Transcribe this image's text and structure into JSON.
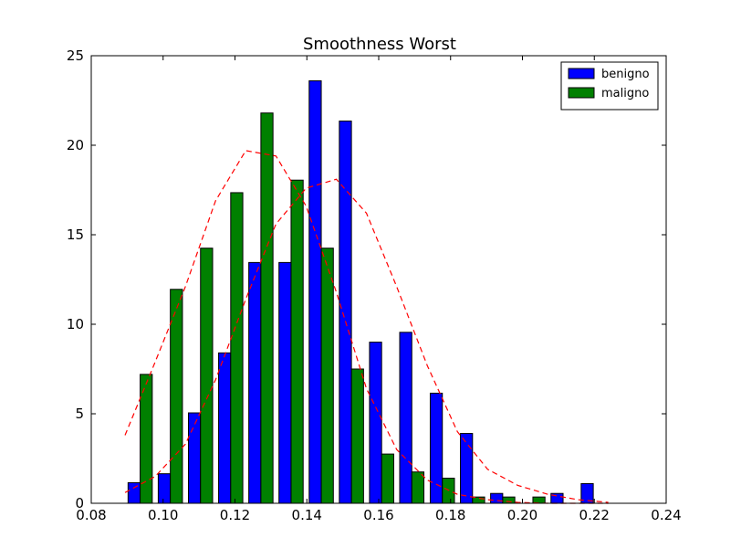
{
  "chart_data": {
    "type": "bar",
    "title": "Smoothness Worst",
    "xlabel": "",
    "ylabel": "",
    "xlim": [
      0.08,
      0.24
    ],
    "ylim": [
      0,
      25
    ],
    "x_ticks": [
      "0.08",
      "0.10",
      "0.12",
      "0.14",
      "0.16",
      "0.18",
      "0.20",
      "0.22",
      "0.24"
    ],
    "y_ticks": [
      "0",
      "5",
      "10",
      "15",
      "20",
      "25"
    ],
    "legend": {
      "placement": "top-right",
      "entries": [
        "benigno",
        "maligno"
      ]
    },
    "grid": false,
    "bin_width": 0.00842,
    "bin_starts": [
      0.0894,
      0.0978,
      0.1062,
      0.1146,
      0.123,
      0.1314,
      0.1398,
      0.1482,
      0.1566,
      0.165,
      0.1735,
      0.1819,
      0.1903,
      0.1987,
      0.2071,
      0.2155
    ],
    "series": [
      {
        "name": "benigno",
        "color": "#0000ff",
        "values": [
          1.15,
          1.65,
          5.05,
          8.4,
          13.45,
          13.45,
          23.6,
          21.35,
          9.0,
          9.55,
          6.15,
          3.9,
          0.55,
          0,
          0.55,
          1.1
        ]
      },
      {
        "name": "maligno",
        "color": "#008000",
        "values": [
          7.2,
          11.95,
          14.25,
          17.35,
          21.8,
          18.05,
          14.25,
          7.5,
          2.75,
          1.75,
          1.4,
          0.35,
          0.35,
          0.35,
          0,
          0
        ]
      }
    ],
    "fit_curves": [
      {
        "color": "#ff0000",
        "style": "dashed",
        "x": [
          0.0894,
          0.0978,
          0.1062,
          0.1146,
          0.123,
          0.1314,
          0.1398,
          0.1482,
          0.1566,
          0.165,
          0.1735,
          0.1819,
          0.1903,
          0.1987,
          0.2071,
          0.2155,
          0.2239
        ],
        "y": [
          0.6,
          1.5,
          3.3,
          6.9,
          11.4,
          15.6,
          17.6,
          18.1,
          16.2,
          12.1,
          7.7,
          4.0,
          1.9,
          1.0,
          0.5,
          0.2,
          0.05
        ]
      },
      {
        "color": "#ff0000",
        "style": "dashed",
        "x": [
          0.0894,
          0.0978,
          0.1062,
          0.1146,
          0.123,
          0.1314,
          0.1398,
          0.1482,
          0.1566,
          0.165,
          0.1735,
          0.1819,
          0.1903,
          0.1987,
          0.2071,
          0.2155,
          0.2239
        ],
        "y": [
          3.8,
          7.9,
          12.1,
          16.9,
          19.7,
          19.4,
          16.6,
          11.8,
          6.4,
          3.0,
          1.3,
          0.5,
          0.2,
          0.05,
          0.0,
          0.0,
          0.0
        ]
      }
    ]
  }
}
